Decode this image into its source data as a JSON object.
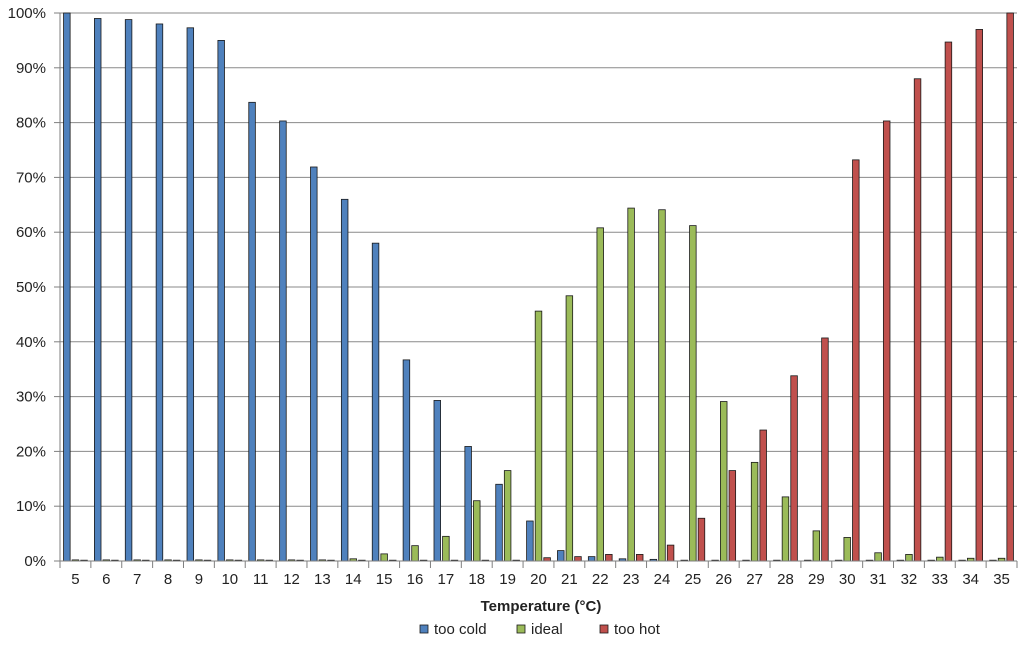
{
  "chart_data": {
    "type": "bar",
    "xlabel": "Temperature (°C)",
    "ylabel": "",
    "ylim": [
      0,
      100
    ],
    "ytick_step": 10,
    "ytick_suffix": "%",
    "grid": true,
    "legend_position": "bottom",
    "categories": [
      "5",
      "6",
      "7",
      "8",
      "9",
      "10",
      "11",
      "12",
      "13",
      "14",
      "15",
      "16",
      "17",
      "18",
      "19",
      "20",
      "21",
      "22",
      "23",
      "24",
      "25",
      "26",
      "27",
      "28",
      "29",
      "30",
      "31",
      "32",
      "33",
      "34",
      "35"
    ],
    "series": [
      {
        "name": "too cold",
        "color": "#4f81bd",
        "values": [
          100,
          99,
          98.8,
          98,
          97.3,
          95,
          83.7,
          80.3,
          71.9,
          66,
          58,
          36.7,
          29.3,
          20.9,
          14,
          7.3,
          1.9,
          0.8,
          0.4,
          0.3,
          0.1,
          0,
          0,
          0,
          0,
          0,
          0,
          0,
          0,
          0,
          0
        ]
      },
      {
        "name": "ideal",
        "color": "#9bbb59",
        "values": [
          0.2,
          0.2,
          0.2,
          0.2,
          0.2,
          0.2,
          0.2,
          0.2,
          0.2,
          0.4,
          1.3,
          2.8,
          4.5,
          11,
          16.5,
          45.6,
          48.4,
          60.8,
          64.4,
          64.1,
          61.2,
          29.1,
          18,
          11.7,
          5.5,
          4.3,
          1.5,
          1.2,
          0.7,
          0.5,
          0.5
        ]
      },
      {
        "name": "too hot",
        "color": "#c0504d",
        "values": [
          0,
          0,
          0,
          0,
          0,
          0,
          0,
          0,
          0,
          0,
          0,
          0,
          0,
          0,
          0,
          0.6,
          0.8,
          1.2,
          1.2,
          2.9,
          7.8,
          16.5,
          23.9,
          33.8,
          40.7,
          73.2,
          80.3,
          88,
          94.7,
          97,
          100
        ]
      }
    ]
  }
}
